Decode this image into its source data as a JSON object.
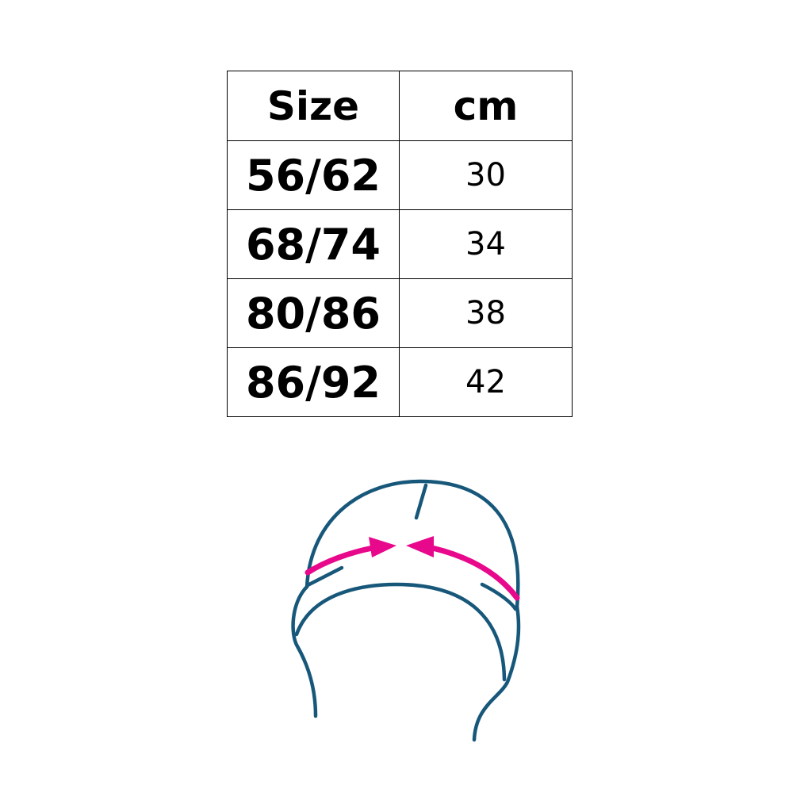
{
  "table": {
    "headers": [
      "Size",
      "cm"
    ],
    "rows": [
      {
        "size": "56/62",
        "cm": "30"
      },
      {
        "size": "68/74",
        "cm": "34"
      },
      {
        "size": "80/86",
        "cm": "38"
      },
      {
        "size": "86/92",
        "cm": "42"
      }
    ]
  },
  "illustration": {
    "subject": "hat-head-circumference",
    "outline_color": "#17577a",
    "arrow_color": "#e8088c"
  }
}
